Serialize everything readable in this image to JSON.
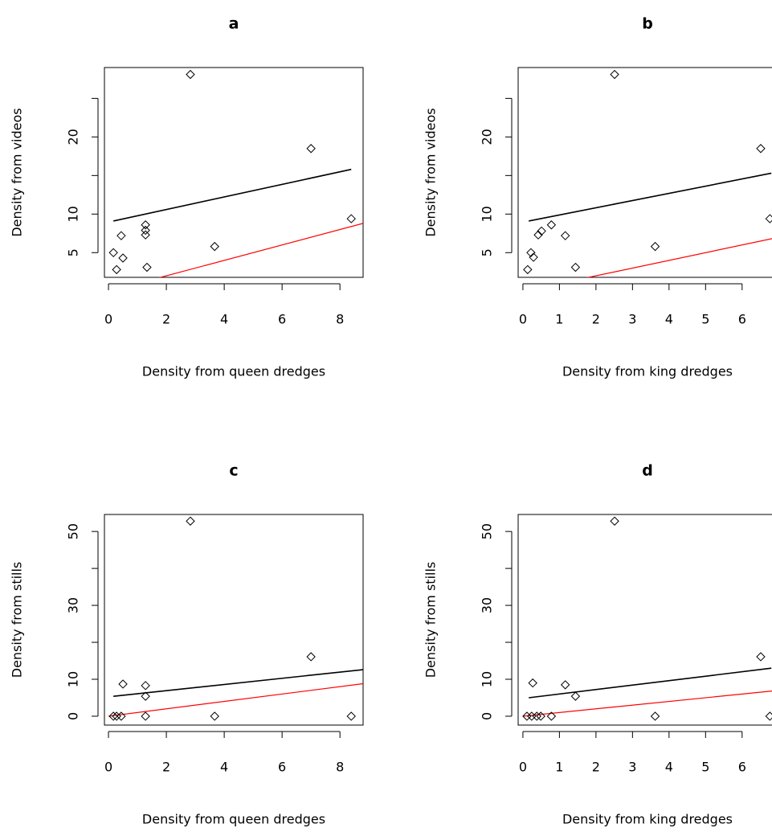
{
  "chart_data": [
    {
      "type": "scatter",
      "title": "a",
      "x_label": "Density from queen dredges",
      "y_label": "Density from videos",
      "x": [
        0.17,
        0.28,
        0.44,
        0.5,
        1.28,
        1.28,
        1.28,
        1.33,
        2.83,
        3.67,
        7.0,
        8.39
      ],
      "values": [
        5,
        2.8,
        7.2,
        4.3,
        8.6,
        7.9,
        7.3,
        3.1,
        28.1,
        5.8,
        18.5,
        9.4
      ],
      "color": "#000000",
      "lines": [
        {
          "color": "#000000",
          "x": [
            0.17,
            8.39
          ],
          "y": [
            9.1,
            15.8
          ]
        },
        {
          "color": "#ff0000",
          "x": [
            1.7,
            8.8
          ],
          "y": [
            1.7,
            8.8
          ]
        }
      ],
      "xlim": [
        -0.14,
        8.8
      ],
      "ylim": [
        1.8,
        29
      ],
      "xticks": [
        0,
        2,
        4,
        6,
        8
      ],
      "yticks": [
        5,
        10,
        {
          "value": 15,
          "label": null
        },
        20,
        {
          "value": 25,
          "label": null
        }
      ]
    },
    {
      "type": "scatter",
      "title": "b",
      "x_label": "Density from king dredges",
      "y_label": "Density from videos",
      "x": [
        0.13,
        0.22,
        0.29,
        0.42,
        0.51,
        0.78,
        1.16,
        1.44,
        2.51,
        3.62,
        6.51,
        6.76
      ],
      "values": [
        2.8,
        5,
        4.4,
        7.3,
        7.8,
        8.6,
        7.2,
        3.1,
        28.1,
        5.8,
        18.5,
        9.4
      ],
      "color": "#000000",
      "lines": [
        {
          "color": "#000000",
          "x": [
            0.16,
            6.8
          ],
          "y": [
            9.1,
            15.3
          ]
        },
        {
          "color": "#ff0000",
          "x": [
            1.7,
            6.95
          ],
          "y": [
            1.7,
            6.95
          ]
        }
      ],
      "xlim": [
        -0.13,
        6.95
      ],
      "ylim": [
        1.8,
        29
      ],
      "xticks": [
        0,
        1,
        2,
        3,
        4,
        5,
        6
      ],
      "yticks": [
        5,
        10,
        {
          "value": 15,
          "label": null
        },
        20,
        {
          "value": 25,
          "label": null
        }
      ]
    },
    {
      "type": "scatter",
      "title": "c",
      "x_label": "Density from queen dredges",
      "y_label": "Density from stills",
      "x": [
        0.17,
        0.28,
        0.44,
        0.5,
        1.28,
        1.28,
        1.28,
        2.83,
        3.67,
        7.0,
        8.39
      ],
      "values": [
        0,
        0,
        0,
        8.7,
        8.3,
        5.4,
        0,
        52.8,
        0,
        16.1,
        0
      ],
      "color": "#000000",
      "lines": [
        {
          "color": "#000000",
          "x": [
            0.17,
            8.8
          ],
          "y": [
            5.4,
            12.6
          ]
        },
        {
          "color": "#ff0000",
          "x": [
            0,
            8.8
          ],
          "y": [
            0,
            8.8
          ]
        }
      ],
      "xlim": [
        -0.14,
        8.8
      ],
      "ylim": [
        -2.4,
        54.6
      ],
      "xticks": [
        0,
        2,
        4,
        6,
        8
      ],
      "yticks": [
        0,
        10,
        {
          "value": 20,
          "label": null
        },
        30,
        {
          "value": 40,
          "label": null
        },
        50
      ]
    },
    {
      "type": "scatter",
      "title": "d",
      "x_label": "Density from king dredges",
      "y_label": "Density from stills",
      "x": [
        0.11,
        0.24,
        0.27,
        0.38,
        0.49,
        0.78,
        1.16,
        1.44,
        2.51,
        3.62,
        6.51,
        6.76
      ],
      "values": [
        0,
        0,
        9,
        0,
        0,
        0,
        8.5,
        5.4,
        52.8,
        0,
        16.1,
        0
      ],
      "color": "#000000",
      "lines": [
        {
          "color": "#000000",
          "x": [
            0.16,
            6.8
          ],
          "y": [
            5.0,
            13.0
          ]
        },
        {
          "color": "#ff0000",
          "x": [
            0,
            6.95
          ],
          "y": [
            0,
            6.95
          ]
        }
      ],
      "xlim": [
        -0.13,
        6.95
      ],
      "ylim": [
        -2.4,
        54.6
      ],
      "xticks": [
        0,
        1,
        2,
        3,
        4,
        5,
        6
      ],
      "yticks": [
        0,
        10,
        {
          "value": 20,
          "label": null
        },
        30,
        {
          "value": 40,
          "label": null
        },
        50
      ]
    }
  ]
}
